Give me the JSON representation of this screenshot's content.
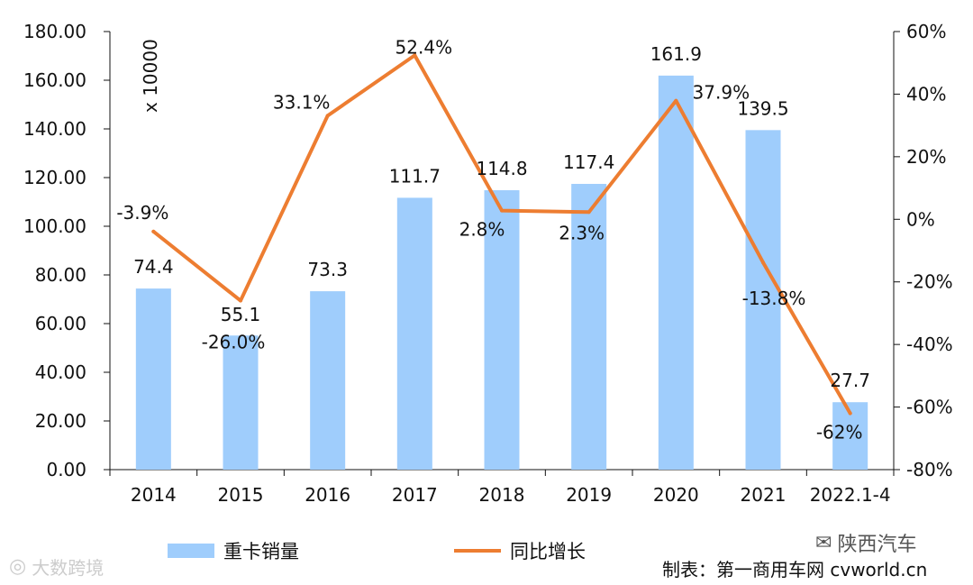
{
  "chart_data": {
    "type": "bar",
    "categories": [
      "2014",
      "2015",
      "2016",
      "2017",
      "2018",
      "2019",
      "2020",
      "2021",
      "2022.1-4"
    ],
    "series": [
      {
        "name": "重卡销量",
        "type": "bar",
        "axis": "left",
        "color": "#9fcdfc",
        "values": [
          74.4,
          55.1,
          73.3,
          111.7,
          114.8,
          117.4,
          161.9,
          139.5,
          27.7
        ],
        "labels": [
          "74.4",
          "55.1",
          "73.3",
          "111.7",
          "114.8",
          "117.4",
          "161.9",
          "139.5",
          "27.7"
        ]
      },
      {
        "name": "同比增长",
        "type": "line",
        "axis": "right",
        "color": "#ed7d31",
        "values": [
          -3.9,
          -26.0,
          33.1,
          52.4,
          2.8,
          2.3,
          37.9,
          -13.8,
          -62
        ],
        "labels": [
          "-3.9%",
          "-26.0%",
          "33.1%",
          "52.4%",
          "2.8%",
          "2.3%",
          "37.9%",
          "-13.8%",
          "-62%"
        ]
      }
    ],
    "y_left": {
      "range": [
        0,
        180
      ],
      "ticks": [
        "0.00",
        "20.00",
        "40.00",
        "60.00",
        "80.00",
        "100.00",
        "120.00",
        "140.00",
        "160.00",
        "180.00"
      ],
      "unit": "x 10000"
    },
    "y_right": {
      "range": [
        -80,
        60
      ],
      "ticks": [
        "-80%",
        "-60%",
        "-40%",
        "-20%",
        "0%",
        "20%",
        "40%",
        "60%"
      ]
    },
    "grid": false,
    "legend_position": "bottom"
  },
  "footer": {
    "source": "制表：第一商用车网 cvworld.cn"
  },
  "watermarks": {
    "right": "陕西汽车",
    "left": "大数跨境"
  }
}
